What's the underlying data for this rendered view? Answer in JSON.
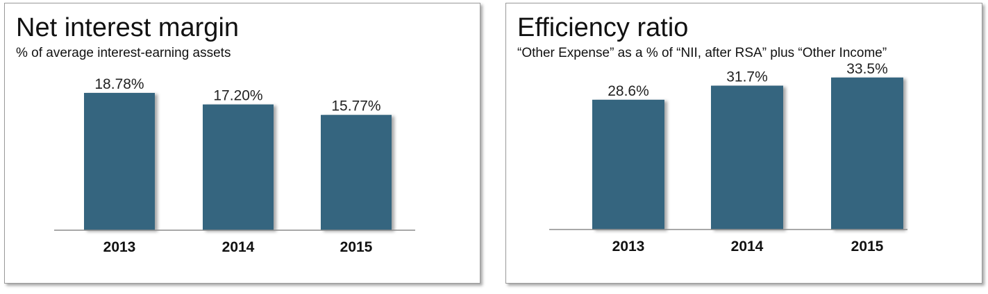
{
  "chart_data": [
    {
      "type": "bar",
      "title": "Net interest margin",
      "subtitle": "% of average interest-earning assets",
      "categories": [
        "2013",
        "2014",
        "2015"
      ],
      "values": [
        18.78,
        17.2,
        15.77
      ],
      "value_labels": [
        "18.78%",
        "17.20%",
        "15.77%"
      ],
      "ylim": [
        0,
        22
      ],
      "bar_color": "#34657f",
      "grid": false,
      "legend": "none"
    },
    {
      "type": "bar",
      "title": "Efficiency ratio",
      "subtitle": "“Other Expense” as a % of “NII, after RSA” plus  “Other Income”",
      "categories": [
        "2013",
        "2014",
        "2015"
      ],
      "values": [
        28.6,
        31.7,
        33.5
      ],
      "value_labels": [
        "28.6%",
        "31.7%",
        "33.5%"
      ],
      "ylim": [
        0,
        38.2
      ],
      "bar_color": "#34657f",
      "grid": false,
      "legend": "none"
    }
  ]
}
